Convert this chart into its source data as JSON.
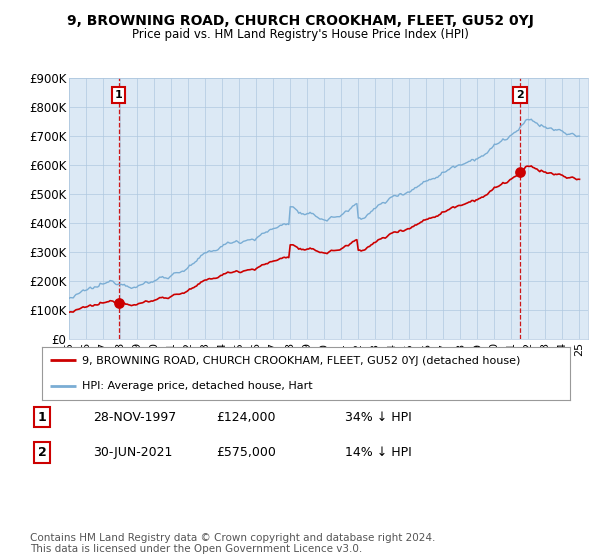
{
  "title": "9, BROWNING ROAD, CHURCH CROOKHAM, FLEET, GU52 0YJ",
  "subtitle": "Price paid vs. HM Land Registry's House Price Index (HPI)",
  "ylim": [
    0,
    900000
  ],
  "xlim_start": 1995.0,
  "xlim_end": 2025.5,
  "yticks": [
    0,
    100000,
    200000,
    300000,
    400000,
    500000,
    600000,
    700000,
    800000,
    900000
  ],
  "ytick_labels": [
    "£0",
    "£100K",
    "£200K",
    "£300K",
    "£400K",
    "£500K",
    "£600K",
    "£700K",
    "£800K",
    "£900K"
  ],
  "sale1_x": 1997.91,
  "sale1_y": 124000,
  "sale1_label": "1",
  "sale2_x": 2021.5,
  "sale2_y": 575000,
  "sale2_label": "2",
  "hpi_color": "#7aadd4",
  "price_color": "#cc0000",
  "dot_color": "#cc0000",
  "vline_color": "#cc0000",
  "plot_bg_color": "#dce9f5",
  "legend_address": "9, BROWNING ROAD, CHURCH CROOKHAM, FLEET, GU52 0YJ (detached house)",
  "legend_hpi": "HPI: Average price, detached house, Hart",
  "table_row1": [
    "1",
    "28-NOV-1997",
    "£124,000",
    "34% ↓ HPI"
  ],
  "table_row2": [
    "2",
    "30-JUN-2021",
    "£575,000",
    "14% ↓ HPI"
  ],
  "footnote": "Contains HM Land Registry data © Crown copyright and database right 2024.\nThis data is licensed under the Open Government Licence v3.0.",
  "bg_color": "#ffffff",
  "grid_color": "#b0c8e0"
}
